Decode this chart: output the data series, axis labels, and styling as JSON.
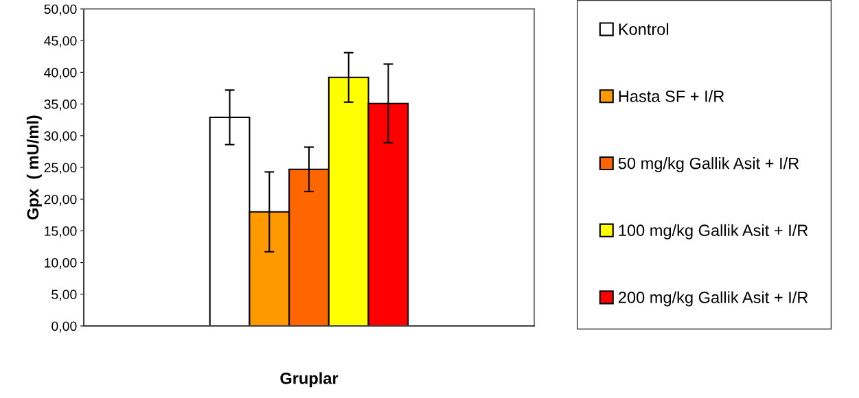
{
  "chart_data": {
    "type": "bar",
    "xlabel": "Gruplar",
    "ylabel": "Gpx  ( mU/ml)",
    "categories": [
      null
    ],
    "series": [
      {
        "name": "Kontrol",
        "color": "#ffffff",
        "values": [
          32.9
        ],
        "errors": [
          4.3
        ]
      },
      {
        "name": "Hasta SF + I/R",
        "color": "#ff9900",
        "values": [
          18.0
        ],
        "errors": [
          6.3
        ]
      },
      {
        "name": "50 mg/kg Gallik Asit + I/R",
        "color": "#ff6600",
        "values": [
          24.7
        ],
        "errors": [
          3.5
        ]
      },
      {
        "name": "100 mg/kg Gallik Asit + I/R",
        "color": "#ffff00",
        "values": [
          39.2
        ],
        "errors": [
          3.9
        ]
      },
      {
        "name": "200 mg/kg Gallik Asit + I/R",
        "color": "#ff0000",
        "values": [
          35.1
        ],
        "errors": [
          6.2
        ]
      }
    ],
    "ylim": [
      0,
      50
    ],
    "yticks": [
      {
        "value": 0,
        "label": "0,00"
      },
      {
        "value": 5,
        "label": "5,00"
      },
      {
        "value": 10,
        "label": "10,00"
      },
      {
        "value": 15,
        "label": "15,00"
      },
      {
        "value": 20,
        "label": "20,00"
      },
      {
        "value": 25,
        "label": "25,00"
      },
      {
        "value": 30,
        "label": "30,00"
      },
      {
        "value": 35,
        "label": "35,00"
      },
      {
        "value": 40,
        "label": "40,00"
      },
      {
        "value": 45,
        "label": "45,00"
      },
      {
        "value": 50,
        "label": "50,00"
      }
    ],
    "grid": false,
    "legend": "right"
  }
}
